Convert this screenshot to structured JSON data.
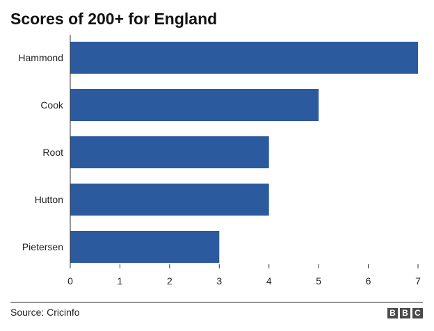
{
  "chart_data": {
    "type": "bar",
    "orientation": "horizontal",
    "title": "Scores of 200+ for England",
    "categories": [
      "Hammond",
      "Cook",
      "Root",
      "Hutton",
      "Pietersen"
    ],
    "values": [
      7,
      5,
      4,
      4,
      3
    ],
    "xlim": [
      0,
      7
    ],
    "xticks": [
      0,
      1,
      2,
      3,
      4,
      5,
      6,
      7
    ],
    "grid": false,
    "bar_color": "#2b5a9e"
  },
  "footer": {
    "source": "Source: Cricinfo",
    "logo": [
      "B",
      "B",
      "C"
    ]
  }
}
